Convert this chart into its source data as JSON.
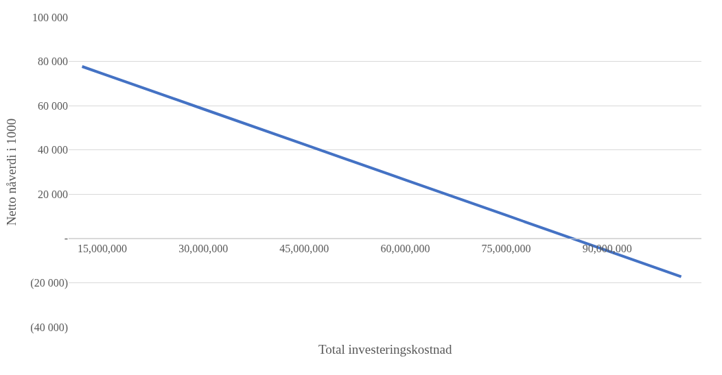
{
  "chart_data": {
    "type": "line",
    "xlabel": "Total investeringskostnad",
    "ylabel": "Netto nåverdi i 1000",
    "x": [
      12000000,
      15000000,
      30000000,
      45000000,
      60000000,
      75000000,
      90000000,
      101000000
    ],
    "series": [
      {
        "color": "#4472c4",
        "values": [
          77700,
          74500,
          58500,
          42500,
          26500,
          10500,
          -5500,
          -17300
        ]
      }
    ],
    "xlim": [
      10000000,
      104000000
    ],
    "xticks": [
      {
        "value": 15000000,
        "label": "15,000,000"
      },
      {
        "value": 30000000,
        "label": "30,000,000"
      },
      {
        "value": 45000000,
        "label": "45,000,000"
      },
      {
        "value": 60000000,
        "label": "60,000,000"
      },
      {
        "value": 75000000,
        "label": "75,000,000"
      },
      {
        "value": 90000000,
        "label": "90,000,000"
      }
    ],
    "ylim": [
      -40000,
      100000
    ],
    "yticks": [
      {
        "value": -40000,
        "label": "(40 000)"
      },
      {
        "value": -20000,
        "label": "(20 000)"
      },
      {
        "value": 0,
        "label": "-"
      },
      {
        "value": 20000,
        "label": "20 000"
      },
      {
        "value": 40000,
        "label": "40 000"
      },
      {
        "value": 60000,
        "label": "60 000"
      },
      {
        "value": 80000,
        "label": "80 000"
      },
      {
        "value": 100000,
        "label": "100 000"
      }
    ],
    "grid": "y",
    "marker": "none",
    "line_style": "solid"
  }
}
